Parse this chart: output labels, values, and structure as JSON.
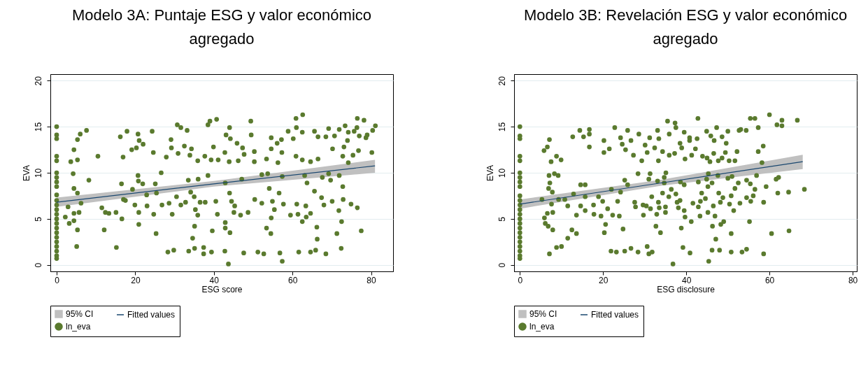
{
  "chart_data": [
    {
      "type": "scatter",
      "title": "Modelo 3A: Puntaje ESG y valor económico agregado",
      "xlabel": "ESG score",
      "ylabel": "EVA",
      "annotations": [
        "95% CI"
      ],
      "xlim": [
        -1.6,
        85.6
      ],
      "ylim": [
        -0.7,
        20.7
      ],
      "xticks": [
        0,
        20,
        40,
        60,
        80
      ],
      "yticks": [
        0,
        5,
        10,
        15,
        20
      ],
      "grid": "y",
      "legend": "bottom",
      "marker": "circle",
      "series": [
        {
          "name": "Fitted values",
          "type": "line",
          "color": "#1a476f",
          "marker": "none",
          "x": [
            0,
            40,
            81
          ],
          "values": [
            6.8,
            8.8,
            10.75
          ],
          "lower": [
            6.3,
            8.5,
            10.0
          ],
          "upper": [
            7.3,
            9.1,
            11.4
          ]
        },
        {
          "name": "ln_eva",
          "type": "scatter",
          "color": "#5a7a2e",
          "x": [
            0,
            0,
            0,
            0,
            0,
            0,
            0,
            0,
            0,
            0,
            0,
            0,
            0,
            0,
            0,
            0,
            0,
            0,
            0,
            0,
            0,
            0,
            0,
            0,
            2.2,
            2.9,
            3.2,
            3.6,
            4.2,
            4.4,
            4.4,
            4.4,
            4.4,
            5.1,
            5.3,
            5.3,
            5.3,
            5.3,
            5.7,
            6.0,
            6.2,
            7.6,
            8.2,
            10.5,
            11.5,
            12.1,
            12.4,
            13.3,
            15.2,
            15.1,
            16.2,
            16.5,
            16.6,
            16.9,
            17.0,
            17.9,
            17.5,
            19.1,
            19.3,
            19.9,
            20.3,
            20.7,
            20.7,
            20.8,
            21.0,
            20.9,
            20.9,
            22.0,
            21.9,
            22.9,
            23.0,
            24.3,
            24.6,
            24.7,
            25.1,
            25.3,
            25.4,
            26.6,
            26.8,
            27.9,
            28.3,
            28.6,
            29.1,
            29.2,
            29.4,
            29.8,
            30.5,
            30.7,
            30.9,
            31.6,
            31.6,
            32.5,
            32.8,
            33.2,
            33.5,
            33.6,
            33.9,
            34.1,
            34.3,
            34.6,
            35.0,
            35.1,
            35.1,
            35.3,
            35.9,
            35.9,
            36.0,
            36.5,
            37.4,
            37.4,
            37.7,
            37.8,
            38.5,
            38.5,
            39.0,
            39.3,
            39.4,
            39.6,
            39.9,
            40.5,
            40.7,
            40.9,
            41.1,
            42.8,
            42.9,
            42.9,
            42.9,
            42.8,
            43.1,
            43.7,
            43.9,
            44.0,
            44.0,
            44.1,
            44.2,
            44.5,
            45.1,
            45.3,
            45.9,
            46.2,
            46.8,
            47.1,
            47.3,
            47.6,
            47.7,
            48.7,
            49.4,
            49.5,
            50.3,
            50.4,
            50.3,
            51.2,
            52.2,
            52.2,
            52.7,
            53.4,
            53.4,
            53.7,
            54.1,
            54.5,
            54.6,
            54.6,
            54.6,
            54.9,
            55.4,
            56.1,
            56.3,
            56.6,
            56.8,
            57.2,
            57.3,
            57.4,
            57.4,
            57.7,
            58.9,
            59.5,
            60.2,
            60.9,
            60.9,
            61.0,
            61.1,
            61.4,
            61.6,
            62.5,
            62.6,
            62.5,
            62.5,
            63.1,
            63.4,
            63.7,
            63.5,
            64.6,
            64.6,
            64.6,
            65.6,
            65.6,
            65.9,
            66.2,
            66.3,
            66.5,
            66.5,
            67.4,
            67.6,
            68.0,
            68.5,
            68.5,
            69.2,
            69.2,
            69.7,
            70.1,
            70.2,
            70.7,
            71.3,
            71.8,
            71.9,
            71.9,
            72.4,
            72.5,
            72.8,
            72.8,
            72.9,
            73.1,
            73.4,
            74.0,
            74.2,
            74.2,
            74.9,
            75.4,
            75.7,
            76.4,
            76.5,
            76.5,
            76.8,
            77.0,
            77.5,
            78.2,
            78.7,
            79.0,
            80.2,
            80.4,
            81.1
          ],
          "values": [
            15,
            14.1,
            13.7,
            11.8,
            11.3,
            10,
            9.5,
            9,
            8.5,
            7.6,
            7,
            6.5,
            6,
            5.5,
            5,
            4.5,
            4,
            3.5,
            3,
            2.5,
            2,
            1.5,
            1,
            0.7,
            5.2,
            6.3,
            4.5,
            11.2,
            9.9,
            12.5,
            8.3,
            5.6,
            4.8,
            2.0,
            13.6,
            11.4,
            7.8,
            3.8,
            5.7,
            14.2,
            6.7,
            14.6,
            9.2,
            11.8,
            6.2,
            3.8,
            5.7,
            5.6,
            1.9,
            5.7,
            13.9,
            8.8,
            5.0,
            11.7,
            7.1,
            14.5,
            7.0,
            12.5,
            8.2,
            6.5,
            12.7,
            14.2,
            9.7,
            9.1,
            13.5,
            5.7,
            4.4,
            13.1,
            8.8,
            7.6,
            6.4,
            14.5,
            12.2,
            5.5,
            8.8,
            3.4,
            7.8,
            10.0,
            6.5,
            11.7,
            1.4,
            6.7,
            13.6,
            12.7,
            5.5,
            1.6,
            7.4,
            15.2,
            12.1,
            14.9,
            6.5,
            12.9,
            6.8,
            14.6,
            9.2,
            1.5,
            11.9,
            7.9,
            12.6,
            2.9,
            7.4,
            4.2,
            1.8,
            6.0,
            11.3,
            5.4,
            9.3,
            6.8,
            1.9,
            1.2,
            11.8,
            6.8,
            9.7,
            15.2,
            15.6,
            11.4,
            1.4,
            3.7,
            12.8,
            6.9,
            15.8,
            5.5,
            11.4,
            12.2,
            8.9,
            4.6,
            4.0,
            1.5,
            14.1,
            0.1,
            11.2,
            14.9,
            7.8,
            3.5,
            13.7,
            6.9,
            5.7,
            6.4,
            13.2,
            11.3,
            5.4,
            9.3,
            12.7,
            1.3,
            12.0,
            5.7,
            15.6,
            14.1,
            11.2,
            7.1,
            12.3,
            1.4,
            6.7,
            9.8,
            1.2,
            4.0,
            11.5,
            9.9,
            8.3,
            3.4,
            12.6,
            5.1,
            13.8,
            6.9,
            6.0,
            13.2,
            11.1,
            7.8,
            1.3,
            13.6,
            12.2,
            0.4,
            9.6,
            6.6,
            14.5,
            5.4,
            13.7,
            15.9,
            11.8,
            14.9,
            6.6,
            5.5,
            1.4,
            14.4,
            16.3,
            11.4,
            4.7,
            9.7,
            6.4,
            8.9,
            5.2,
            5.6,
            11.2,
            1.4,
            14.5,
            8.0,
            1.6,
            4.1,
            2.8,
            11.5,
            13.9,
            7.3,
            9.5,
            6.5,
            13.9,
            1.2,
            14.8,
            9.9,
            9.2,
            6.9,
            12.6,
            14.0,
            3.4,
            5.9,
            9.7,
            14.7,
            1.8,
            4.7,
            8.5,
            11.8,
            7.1,
            12.8,
            15.1,
            13.5,
            11.1,
            14.4,
            6.6,
            11.9,
            14.5,
            14.9,
            15.9,
            6.2,
            12.4,
            14.0,
            3.7,
            15.7,
            13.8,
            14.1,
            12.2,
            14.6,
            15.1
          ]
        }
      ]
    },
    {
      "type": "scatter",
      "title": "Modelo 3B: Revelación ESG y valor económico agregado",
      "xlabel": "ESG disclosure",
      "ylabel": "EVA",
      "annotations": [
        "95% CI"
      ],
      "xlim": [
        -1.4,
        81
      ],
      "ylim": [
        -0.7,
        20.7
      ],
      "xticks": [
        0,
        20,
        40,
        60,
        80
      ],
      "yticks": [
        0,
        5,
        10,
        15,
        20
      ],
      "grid": "y",
      "legend": "bottom",
      "marker": "circle",
      "series": [
        {
          "name": "Fitted values",
          "type": "line",
          "color": "#1a476f",
          "marker": "none",
          "x": [
            0,
            34,
            68
          ],
          "values": [
            6.6,
            8.9,
            11.2
          ],
          "lower": [
            6.1,
            8.6,
            10.4
          ],
          "upper": [
            7.1,
            9.25,
            11.95
          ]
        },
        {
          "name": "ln_eva",
          "type": "scatter",
          "color": "#5a7a2e",
          "x": [
            0,
            0,
            0,
            0,
            0,
            0,
            0,
            0,
            0,
            0,
            0,
            0,
            0,
            0,
            0,
            0,
            0,
            0,
            0,
            0,
            0,
            0,
            0,
            0,
            5.3,
            5.8,
            5.9,
            6.1,
            6.6,
            6.6,
            6.8,
            6.9,
            7.0,
            7.1,
            7.1,
            7.2,
            7.5,
            7.6,
            7.8,
            7.9,
            7.9,
            8.3,
            8.8,
            8.8,
            9.2,
            9.3,
            9.9,
            10.0,
            10.8,
            11.5,
            11.5,
            12.5,
            12.7,
            12.9,
            13.6,
            13.6,
            14.4,
            14.6,
            14.6,
            15.3,
            15.7,
            15.7,
            15.7,
            16.7,
            16.7,
            16.7,
            17.7,
            17.8,
            18.9,
            19.5,
            19.9,
            20.2,
            20.2,
            20.3,
            20.6,
            21.1,
            21.5,
            21.9,
            22.0,
            22.3,
            22.8,
            23.2,
            23.5,
            23.9,
            24.2,
            24.2,
            24.6,
            24.8,
            25.2,
            25.2,
            25.4,
            25.9,
            25.9,
            26.7,
            26.7,
            27.3,
            27.6,
            27.8,
            28.4,
            28.4,
            28.6,
            29.3,
            29.6,
            29.7,
            30.1,
            30.4,
            30.6,
            30.6,
            31.0,
            31.0,
            31.2,
            31.3,
            31.4,
            31.7,
            31.8,
            32.4,
            32.7,
            32.9,
            33.1,
            33.1,
            33.3,
            33.3,
            33.4,
            33.5,
            33.8,
            34.3,
            34.3,
            34.7,
            34.7,
            35.0,
            35.0,
            35.1,
            35.5,
            35.8,
            35.9,
            35.9,
            36.4,
            36.8,
            37.2,
            37.3,
            37.5,
            37.5,
            37.8,
            38.1,
            38.5,
            38.5,
            38.6,
            38.8,
            38.9,
            39.2,
            39.5,
            39.5,
            39.5,
            39.7,
            39.7,
            40.8,
            40.8,
            40.9,
            41.2,
            41.3,
            41.6,
            42.2,
            42.6,
            42.8,
            42.9,
            42.9,
            43.3,
            43.4,
            43.7,
            43.9,
            44.6,
            44.9,
            44.9,
            45.2,
            45.0,
            45.2,
            45.3,
            45.4,
            45.7,
            45.9,
            46.2,
            46.2,
            46.3,
            46.5,
            46.6,
            46.7,
            46.9,
            47.1,
            47.3,
            47.6,
            47.7,
            47.8,
            48.0,
            48.2,
            48.3,
            48.6,
            48.6,
            48.8,
            49.0,
            49.4,
            49.6,
            50.0,
            50.0,
            50.3,
            50.4,
            50.8,
            50.8,
            50.8,
            51.0,
            51.4,
            51.7,
            51.7,
            52.2,
            52.5,
            52.7,
            52.9,
            53.1,
            53.4,
            54.4,
            54.5,
            54.5,
            54.5,
            55.2,
            55.4,
            55.4,
            55.5,
            56.1,
            56.5,
            56.5,
            56.9,
            57.3,
            57.3,
            58.2,
            58.5,
            58.6,
            58.6,
            59.2,
            60.0,
            60.5,
            61.6,
            61.8,
            62.0,
            62.2,
            63.0,
            63.0,
            64.6,
            64.7,
            66.7,
            68.4
          ],
          "values": [
            15,
            14.0,
            13.7,
            11.8,
            11.3,
            10,
            9.5,
            9,
            8.5,
            7.5,
            7,
            6.5,
            6,
            5.5,
            5,
            4.5,
            4,
            3.5,
            3,
            2.5,
            2,
            1.5,
            1,
            0.7,
            7.1,
            12.4,
            5.1,
            4.5,
            12.8,
            5.6,
            4.2,
            8.3,
            9.7,
            13.6,
            1.2,
            8.9,
            11.2,
            6.6,
            7.9,
            5.7,
            3.8,
            9.9,
            11.8,
            1.9,
            9.7,
            7.1,
            11.4,
            2.0,
            7.1,
            2.9,
            6.4,
            3.8,
            13.9,
            7.7,
            5.4,
            3.4,
            14.6,
            8.7,
            6.4,
            13.9,
            8.7,
            7.4,
            5.9,
            14.7,
            14.2,
            12.8,
            6.5,
            5.5,
            7.4,
            5.3,
            6.9,
            13.5,
            12.2,
            3.5,
            4.4,
            6.1,
            12.6,
            1.5,
            8.2,
            5.4,
            14.9,
            1.4,
            6.9,
            5.3,
            13.8,
            7.9,
            13.1,
            3.9,
            9.2,
            1.5,
            12.5,
            14.6,
            8.7,
            13.5,
            1.8,
            11.9,
            6.8,
            6.3,
            1.4,
            9.9,
            14.2,
            11.3,
            6.5,
            5.4,
            13.0,
            6.4,
            12.2,
            2.0,
            1.2,
            9.3,
            13.8,
            9.9,
            6.1,
            7.4,
            1.4,
            12.7,
            4.2,
            5.5,
            9.1,
            14.6,
            11.3,
            6.8,
            13.7,
            6.2,
            3.5,
            7.8,
            12.3,
            8.9,
            9.5,
            6.3,
            5.7,
            10.0,
            15.6,
            7.4,
            14.2,
            11.9,
            8.2,
            0.1,
            12.1,
            15.4,
            14.9,
            7.7,
            6.8,
            6.2,
            7.0,
            13.2,
            9.0,
            4.0,
            12.7,
            1.9,
            14.4,
            8.7,
            5.9,
            11.5,
            5.2,
            13.8,
            13.5,
            1.3,
            4.7,
            11.9,
            6.7,
            12.6,
            13.7,
            15.9,
            6.3,
            9.0,
            5.3,
            6.9,
            7.8,
            11.8,
            7.2,
            9.3,
            14.5,
            8.5,
            11.6,
            5.7,
            9.9,
            0.4,
            11.2,
            14.0,
            8.9,
            1.6,
            4.2,
            6.4,
            12.1,
            13.5,
            5.3,
            2.8,
            14.9,
            9.7,
            11.3,
            7.8,
            1.6,
            6.8,
            4.4,
            13.9,
            11.6,
            7.3,
            4.7,
            12.2,
            13.2,
            14.5,
            9.4,
            11.3,
            6.6,
            3.4,
            1.4,
            7.5,
            9.6,
            5.9,
            8.3,
            11.3,
            12.3,
            8.9,
            14.6,
            6.7,
            14.7,
            1.4,
            14.6,
            9.2,
            7.3,
            1.7,
            4.7,
            15.9,
            8.8,
            6.9,
            7.5,
            15.9,
            8.2,
            9.7,
            14.9,
            12.3,
            11.1,
            12.9,
            6.8,
            1.2,
            8.5,
            16.3,
            3.4,
            9.3,
            15.2,
            7.8,
            9.5,
            15.1,
            15.7,
            7.9,
            3.7,
            15.7,
            8.2
          ]
        }
      ]
    }
  ]
}
